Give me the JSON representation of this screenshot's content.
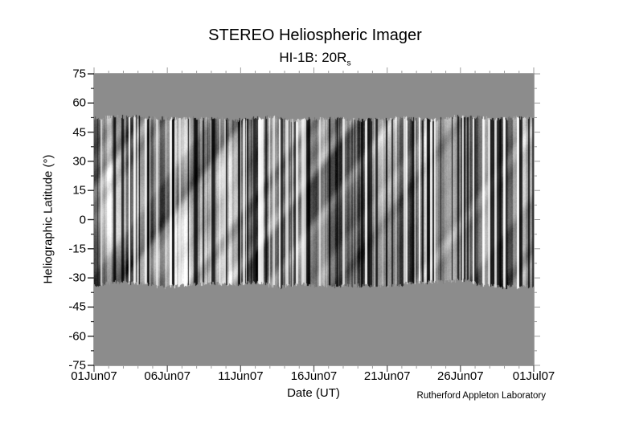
{
  "title": "STEREO Heliospheric Imager",
  "subtitle": {
    "prefix": "HI-1B: 20R",
    "subscript": "s"
  },
  "credit": "Rutherford Appleton Laboratory",
  "axes": {
    "x": {
      "label": "Date (UT)",
      "tick_labels": [
        "01Jun07",
        "06Jun07",
        "11Jun07",
        "16Jun07",
        "21Jun07",
        "26Jun07",
        "01Jul07"
      ],
      "minor_tick_interval_days": 1,
      "major_tick_interval_days": 5,
      "range_days": 30
    },
    "y": {
      "label": "Heliographic Latitude (°)",
      "tick_values": [
        75,
        60,
        45,
        30,
        15,
        0,
        -15,
        -30,
        -45,
        -60,
        -75
      ],
      "minor_tick_interval_deg": 7.5,
      "range": [
        -75,
        75
      ]
    }
  },
  "colors": {
    "plot_background": "#8c8c8c",
    "text": "#000000",
    "tick_light": "#9d9d9d",
    "tick_dark": "#2a2a2a",
    "tick_bottom_major": "#5a5a5a",
    "frame": "#a3a3a3"
  },
  "chart_data": {
    "type": "heatmap",
    "title": "STEREO Heliospheric Imager",
    "subtitle": "HI-1B: 20Rs",
    "xlabel": "Date (UT)",
    "ylabel": "Heliographic Latitude (°)",
    "x_tick_labels": [
      "01Jun07",
      "06Jun07",
      "11Jun07",
      "16Jun07",
      "21Jun07",
      "26Jun07",
      "01Jul07"
    ],
    "x_range": [
      "01Jun07",
      "01Jul07"
    ],
    "x_minor_tick_interval_days": 1,
    "ylim": [
      -75,
      75
    ],
    "y_tick_values": [
      75,
      60,
      45,
      30,
      15,
      0,
      -15,
      -30,
      -45,
      -60,
      -75
    ],
    "y_minor_tick_interval_deg": 7.5,
    "grid": false,
    "legend": false,
    "data_band": {
      "latitude_max_deg": 52,
      "latitude_min_deg": -33,
      "date_start": "01Jun07",
      "date_end": "01Jul07",
      "description": "Grayscale running-difference intensity map rendered as dense vertical black/white striations with faint diagonal streaks, spanning the full date range; individual pixel values not legible",
      "outside_band_fill": "#8c8c8c"
    },
    "credit": "Rutherford Appleton Laboratory"
  }
}
